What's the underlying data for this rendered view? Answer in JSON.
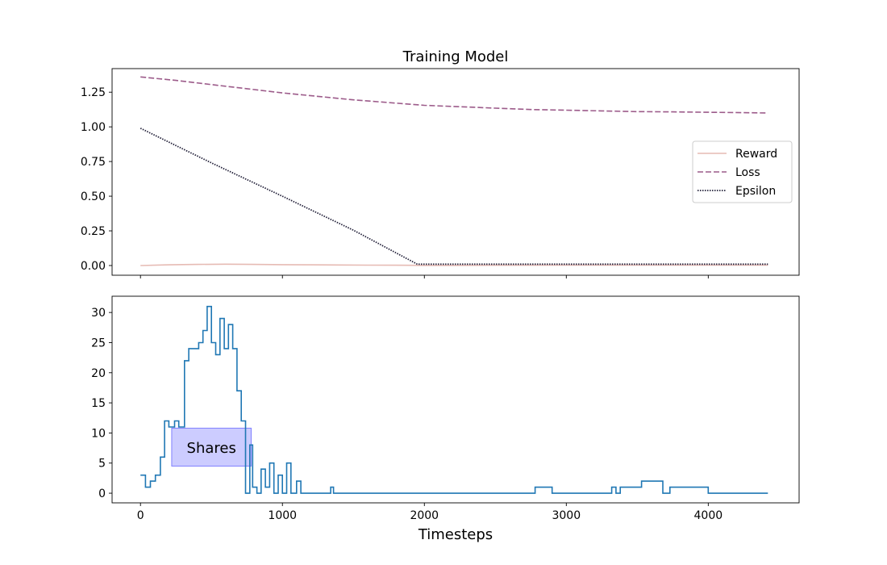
{
  "chart_data": [
    {
      "type": "line",
      "title": "Training Model",
      "xlim": [
        -200,
        4640
      ],
      "ylim": [
        -0.07,
        1.42
      ],
      "x_ticks": [
        0,
        1000,
        2000,
        3000,
        4000
      ],
      "x_ticks_labeled": false,
      "y_ticks": [
        0.0,
        0.25,
        0.5,
        0.75,
        1.0,
        1.25
      ],
      "y_tick_labels": [
        "0.00",
        "0.25",
        "0.50",
        "0.75",
        "1.00",
        "1.25"
      ],
      "grid": false,
      "legend": {
        "placement": "center-right"
      },
      "series": [
        {
          "name": "Reward",
          "color": "#e6bbb4",
          "style": "solid",
          "x": [
            0,
            200,
            400,
            600,
            800,
            1000,
            1200,
            1400,
            1600,
            1800,
            2000,
            2200,
            2500,
            3000,
            3500,
            4000,
            4420
          ],
          "y": [
            0.0,
            0.005,
            0.008,
            0.01,
            0.008,
            0.006,
            0.005,
            0.004,
            0.003,
            0.002,
            0.001,
            0.001,
            0.002,
            0.003,
            0.003,
            0.003,
            0.003
          ]
        },
        {
          "name": "Loss",
          "color": "#9c5b8a",
          "style": "dashed",
          "x": [
            0,
            250,
            500,
            750,
            1000,
            1250,
            1500,
            1750,
            2000,
            2250,
            2500,
            2750,
            3000,
            3250,
            3500,
            3750,
            4000,
            4250,
            4420
          ],
          "y": [
            1.36,
            1.335,
            1.305,
            1.275,
            1.245,
            1.22,
            1.195,
            1.175,
            1.155,
            1.145,
            1.135,
            1.125,
            1.12,
            1.115,
            1.11,
            1.108,
            1.105,
            1.102,
            1.1
          ]
        },
        {
          "name": "Epsilon",
          "color": "#23213a",
          "style": "dotted",
          "x": [
            0,
            500,
            1000,
            1500,
            1950,
            2000,
            2500,
            3000,
            3500,
            4000,
            4420
          ],
          "y": [
            0.99,
            0.74,
            0.5,
            0.255,
            0.01,
            0.01,
            0.01,
            0.01,
            0.01,
            0.01,
            0.01
          ]
        }
      ]
    },
    {
      "type": "line",
      "step": true,
      "xlabel": "Timesteps",
      "xlim": [
        -200,
        4640
      ],
      "ylim": [
        -1.6,
        32.7
      ],
      "x_ticks": [
        0,
        1000,
        2000,
        3000,
        4000
      ],
      "x_tick_labels": [
        "0",
        "1000",
        "2000",
        "3000",
        "4000"
      ],
      "y_ticks": [
        0,
        5,
        10,
        15,
        20,
        25,
        30
      ],
      "y_tick_labels": [
        "0",
        "5",
        "10",
        "15",
        "20",
        "25",
        "30"
      ],
      "grid": false,
      "annotation": {
        "text": "Shares",
        "x0": 220,
        "x1": 780,
        "y0": 4.5,
        "y1": 10.8,
        "color": "#8080ff"
      },
      "series": [
        {
          "color": "#1f77b4",
          "x": [
            0,
            35,
            70,
            105,
            140,
            170,
            200,
            240,
            270,
            310,
            340,
            380,
            410,
            440,
            470,
            500,
            530,
            560,
            590,
            620,
            650,
            680,
            710,
            740,
            770,
            790,
            820,
            850,
            880,
            910,
            940,
            970,
            1000,
            1030,
            1060,
            1100,
            1130,
            1160,
            1340,
            1360,
            1380,
            2780,
            2900,
            3320,
            3350,
            3380,
            3500,
            3530,
            3560,
            3680,
            3730,
            4000,
            4420
          ],
          "y": [
            3,
            1,
            2,
            3,
            6,
            12,
            11,
            12,
            11,
            22,
            24,
            24,
            25,
            27,
            31,
            25,
            23,
            29,
            24,
            28,
            24,
            17,
            12,
            0,
            8,
            1,
            0,
            4,
            1,
            5,
            0,
            3,
            0,
            5,
            0,
            2,
            0,
            0,
            1,
            0,
            0,
            1,
            0,
            1,
            0,
            1,
            1,
            2,
            2,
            0,
            1,
            0,
            0
          ]
        }
      ]
    }
  ]
}
